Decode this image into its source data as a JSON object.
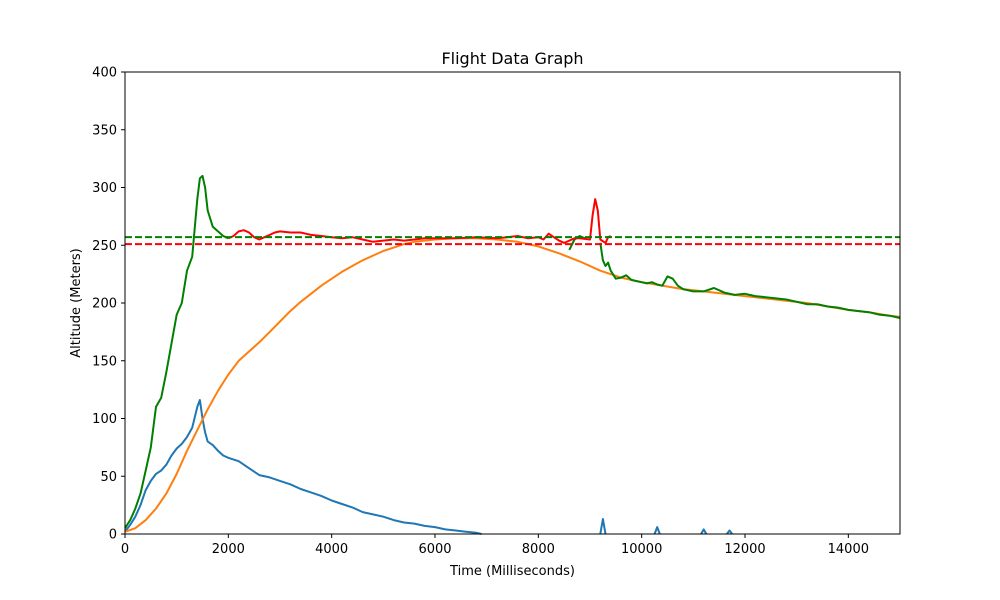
{
  "chart_data": {
    "type": "line",
    "title": "Flight Data Graph",
    "xlabel": "Time (Milliseconds)",
    "ylabel": "Altitude (Meters)",
    "xlim": [
      0,
      15000
    ],
    "ylim": [
      0,
      400
    ],
    "xticks": [
      0,
      2000,
      4000,
      6000,
      8000,
      10000,
      12000,
      14000
    ],
    "yticks": [
      0,
      50,
      100,
      150,
      200,
      250,
      300,
      350,
      400
    ],
    "grid": false,
    "legend": "none",
    "hlines": [
      {
        "y": 257,
        "color": "#008000",
        "style": "dashed"
      },
      {
        "y": 251,
        "color": "#ff0000",
        "style": "dashed"
      }
    ],
    "series": [
      {
        "color": "#1f77b4",
        "segments": [
          [
            [
              0,
              2
            ],
            [
              100,
              8
            ],
            [
              200,
              15
            ],
            [
              300,
              25
            ],
            [
              400,
              38
            ],
            [
              500,
              46
            ],
            [
              600,
              52
            ],
            [
              700,
              55
            ],
            [
              800,
              60
            ],
            [
              900,
              68
            ],
            [
              1000,
              74
            ],
            [
              1100,
              78
            ],
            [
              1200,
              84
            ],
            [
              1300,
              92
            ],
            [
              1400,
              110
            ],
            [
              1450,
              116
            ],
            [
              1500,
              100
            ],
            [
              1550,
              88
            ],
            [
              1600,
              80
            ],
            [
              1700,
              77
            ],
            [
              1800,
              72
            ],
            [
              1900,
              68
            ],
            [
              2000,
              66
            ],
            [
              2200,
              63
            ],
            [
              2400,
              57
            ],
            [
              2600,
              51
            ],
            [
              2800,
              49
            ],
            [
              3000,
              46
            ],
            [
              3200,
              43
            ],
            [
              3400,
              39
            ],
            [
              3600,
              36
            ],
            [
              3800,
              33
            ],
            [
              4000,
              29
            ],
            [
              4200,
              26
            ],
            [
              4400,
              23
            ],
            [
              4600,
              19
            ],
            [
              4800,
              17
            ],
            [
              5000,
              15
            ],
            [
              5200,
              12
            ],
            [
              5400,
              10
            ],
            [
              5600,
              9
            ],
            [
              5800,
              7
            ],
            [
              6000,
              6
            ],
            [
              6200,
              4
            ],
            [
              6400,
              3
            ],
            [
              6600,
              2
            ],
            [
              6800,
              1
            ],
            [
              6900,
              0
            ]
          ],
          [
            [
              9200,
              0
            ],
            [
              9250,
              13
            ],
            [
              9300,
              0
            ]
          ],
          [
            [
              10250,
              0
            ],
            [
              10300,
              6
            ],
            [
              10350,
              0
            ]
          ],
          [
            [
              11150,
              0
            ],
            [
              11200,
              4
            ],
            [
              11250,
              0
            ]
          ],
          [
            [
              11650,
              0
            ],
            [
              11700,
              3
            ],
            [
              11750,
              0
            ]
          ]
        ]
      },
      {
        "color": "#ff7f0e",
        "segments": [
          [
            [
              0,
              2
            ],
            [
              200,
              5
            ],
            [
              400,
              12
            ],
            [
              600,
              22
            ],
            [
              800,
              35
            ],
            [
              1000,
              52
            ],
            [
              1200,
              72
            ],
            [
              1400,
              90
            ],
            [
              1600,
              108
            ],
            [
              1800,
              124
            ],
            [
              2000,
              138
            ],
            [
              2200,
              150
            ],
            [
              2400,
              158
            ],
            [
              2600,
              166
            ],
            [
              2800,
              175
            ],
            [
              3000,
              184
            ],
            [
              3200,
              193
            ],
            [
              3400,
              201
            ],
            [
              3600,
              208
            ],
            [
              3800,
              215
            ],
            [
              4000,
              221
            ],
            [
              4200,
              227
            ],
            [
              4400,
              232
            ],
            [
              4600,
              237
            ],
            [
              4800,
              241
            ],
            [
              5000,
              245
            ],
            [
              5200,
              248
            ],
            [
              5400,
              251
            ],
            [
              5600,
              253
            ],
            [
              5800,
              254
            ],
            [
              6000,
              255
            ],
            [
              6400,
              256
            ],
            [
              6800,
              256
            ],
            [
              7200,
              255
            ],
            [
              7600,
              253
            ],
            [
              8000,
              249
            ],
            [
              8400,
              243
            ],
            [
              8800,
              236
            ],
            [
              9200,
              228
            ],
            [
              9600,
              222
            ],
            [
              10000,
              218
            ],
            [
              10400,
              215
            ],
            [
              10800,
              212
            ],
            [
              11200,
              210
            ],
            [
              11600,
              208
            ],
            [
              12000,
              206
            ],
            [
              12400,
              204
            ],
            [
              12800,
              202
            ],
            [
              13200,
              200
            ],
            [
              13600,
              197
            ],
            [
              14000,
              194
            ],
            [
              14400,
              192
            ],
            [
              14800,
              189
            ],
            [
              15000,
              188
            ]
          ]
        ]
      },
      {
        "color": "#008000",
        "segments": [
          [
            [
              0,
              5
            ],
            [
              100,
              12
            ],
            [
              200,
              22
            ],
            [
              300,
              35
            ],
            [
              400,
              55
            ],
            [
              500,
              75
            ],
            [
              600,
              110
            ],
            [
              700,
              118
            ],
            [
              800,
              140
            ],
            [
              900,
              165
            ],
            [
              1000,
              190
            ],
            [
              1100,
              200
            ],
            [
              1200,
              228
            ],
            [
              1300,
              240
            ],
            [
              1400,
              290
            ],
            [
              1450,
              308
            ],
            [
              1500,
              310
            ],
            [
              1550,
              300
            ],
            [
              1600,
              280
            ],
            [
              1700,
              266
            ],
            [
              1800,
              262
            ],
            [
              1900,
              258
            ],
            [
              2000,
              256
            ]
          ],
          [
            [
              8600,
              246
            ],
            [
              8700,
              255
            ],
            [
              8800,
              258
            ],
            [
              8900,
              256
            ]
          ],
          [
            [
              9200,
              252
            ],
            [
              9250,
              237
            ],
            [
              9300,
              232
            ],
            [
              9350,
              235
            ],
            [
              9400,
              228
            ],
            [
              9500,
              221
            ],
            [
              9600,
              222
            ],
            [
              9700,
              224
            ],
            [
              9800,
              220
            ],
            [
              9900,
              219
            ],
            [
              10000,
              218
            ],
            [
              10100,
              217
            ],
            [
              10200,
              218
            ],
            [
              10300,
              216
            ],
            [
              10400,
              215
            ],
            [
              10500,
              223
            ],
            [
              10600,
              221
            ],
            [
              10700,
              215
            ],
            [
              10800,
              212
            ],
            [
              10900,
              211
            ],
            [
              11000,
              210
            ],
            [
              11200,
              210
            ],
            [
              11400,
              213
            ],
            [
              11600,
              209
            ],
            [
              11800,
              207
            ],
            [
              12000,
              208
            ],
            [
              12200,
              206
            ],
            [
              12400,
              205
            ],
            [
              12600,
              204
            ],
            [
              12800,
              203
            ],
            [
              13000,
              201
            ],
            [
              13200,
              199
            ],
            [
              13400,
              199
            ],
            [
              13600,
              197
            ],
            [
              13800,
              196
            ],
            [
              14000,
              194
            ],
            [
              14200,
              193
            ],
            [
              14400,
              192
            ],
            [
              14600,
              190
            ],
            [
              14800,
              189
            ],
            [
              15000,
              187
            ]
          ]
        ]
      },
      {
        "color": "#ff0000",
        "segments": [
          [
            [
              2000,
              256
            ],
            [
              2100,
              258
            ],
            [
              2200,
              262
            ],
            [
              2300,
              263
            ],
            [
              2400,
              261
            ],
            [
              2500,
              257
            ],
            [
              2600,
              255
            ],
            [
              2700,
              257
            ],
            [
              2800,
              259
            ],
            [
              2900,
              261
            ],
            [
              3000,
              262
            ],
            [
              3200,
              261
            ],
            [
              3400,
              261
            ],
            [
              3500,
              260
            ],
            [
              3600,
              259
            ],
            [
              3800,
              258
            ],
            [
              4000,
              257
            ],
            [
              4200,
              256
            ],
            [
              4400,
              257
            ],
            [
              4600,
              255
            ],
            [
              4800,
              253
            ],
            [
              5000,
              254
            ],
            [
              5200,
              255
            ],
            [
              5400,
              254
            ],
            [
              5600,
              255
            ],
            [
              5800,
              256
            ],
            [
              6000,
              256
            ],
            [
              6400,
              256
            ],
            [
              6800,
              257
            ],
            [
              7200,
              256
            ],
            [
              7400,
              257
            ],
            [
              7600,
              258
            ],
            [
              7800,
              256
            ],
            [
              8000,
              257
            ],
            [
              8100,
              255
            ],
            [
              8200,
              260
            ],
            [
              8300,
              257
            ],
            [
              8400,
              254
            ],
            [
              8500,
              252
            ],
            [
              8600,
              254
            ],
            [
              8700,
              256
            ],
            [
              8800,
              256
            ],
            [
              9000,
              255
            ],
            [
              9050,
              276
            ],
            [
              9100,
              290
            ],
            [
              9150,
              280
            ],
            [
              9200,
              255
            ],
            [
              9300,
              252
            ],
            [
              9350,
              257
            ],
            [
              9400,
              258
            ]
          ]
        ]
      }
    ]
  }
}
